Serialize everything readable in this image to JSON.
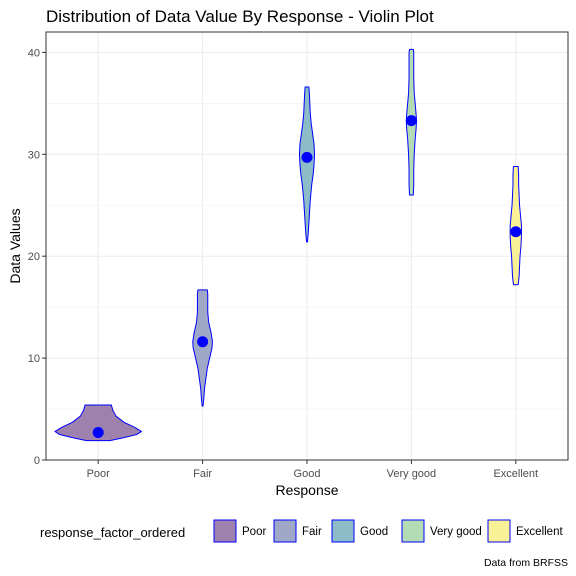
{
  "chart_data": {
    "type": "violin",
    "title": "Distribution of Data Value By Response - Violin Plot",
    "xlabel": "Response",
    "ylabel": "Data Values",
    "ylim": [
      0,
      42
    ],
    "yticks": [
      0,
      10,
      20,
      30,
      40
    ],
    "categories": [
      "Poor",
      "Fair",
      "Good",
      "Very good",
      "Excellent"
    ],
    "colors": {
      "Poor": "#9e82ad",
      "Fair": "#a0a8c8",
      "Good": "#8cbcc8",
      "Very good": "#b4dcb4",
      "Excellent": "#faf096"
    },
    "outline_color": "#0000ff",
    "point_color": "#0000ff",
    "grid": true,
    "legend": {
      "title": "response_factor_ordered",
      "position": "bottom"
    },
    "caption": "Data from BRFSS",
    "series": [
      {
        "category": "Poor",
        "mean": 2.7,
        "min": 1.9,
        "max": 5.4,
        "profile": [
          [
            1.9,
            0.25
          ],
          [
            2.2,
            0.55
          ],
          [
            2.5,
            0.82
          ],
          [
            2.8,
            0.92
          ],
          [
            3.2,
            0.78
          ],
          [
            3.7,
            0.55
          ],
          [
            4.3,
            0.38
          ],
          [
            4.9,
            0.31
          ],
          [
            5.4,
            0.28
          ]
        ]
      },
      {
        "category": "Fair",
        "mean": 11.6,
        "min": 5.3,
        "max": 16.7,
        "profile": [
          [
            5.3,
            0.01
          ],
          [
            6.0,
            0.025
          ],
          [
            7.0,
            0.04
          ],
          [
            8.0,
            0.07
          ],
          [
            9.0,
            0.1
          ],
          [
            10.0,
            0.15
          ],
          [
            11.0,
            0.2
          ],
          [
            11.6,
            0.21
          ],
          [
            12.5,
            0.18
          ],
          [
            13.5,
            0.13
          ],
          [
            14.5,
            0.11
          ],
          [
            15.5,
            0.11
          ],
          [
            16.3,
            0.11
          ],
          [
            16.7,
            0.1
          ]
        ]
      },
      {
        "category": "Good",
        "mean": 29.7,
        "min": 21.4,
        "max": 36.6,
        "profile": [
          [
            21.4,
            0.01
          ],
          [
            22.5,
            0.03
          ],
          [
            24.0,
            0.05
          ],
          [
            25.5,
            0.07
          ],
          [
            27.0,
            0.1
          ],
          [
            28.0,
            0.13
          ],
          [
            29.0,
            0.15
          ],
          [
            30.0,
            0.16
          ],
          [
            31.0,
            0.15
          ],
          [
            32.0,
            0.12
          ],
          [
            33.0,
            0.09
          ],
          [
            34.0,
            0.07
          ],
          [
            35.0,
            0.06
          ],
          [
            36.0,
            0.05
          ],
          [
            36.6,
            0.04
          ]
        ]
      },
      {
        "category": "Very good",
        "mean": 33.3,
        "min": 26.0,
        "max": 40.3,
        "profile": [
          [
            26.0,
            0.04
          ],
          [
            27.0,
            0.05
          ],
          [
            28.5,
            0.05
          ],
          [
            30.0,
            0.06
          ],
          [
            31.5,
            0.08
          ],
          [
            32.5,
            0.1
          ],
          [
            33.3,
            0.11
          ],
          [
            34.5,
            0.09
          ],
          [
            36.0,
            0.06
          ],
          [
            37.5,
            0.05
          ],
          [
            39.0,
            0.05
          ],
          [
            40.0,
            0.05
          ],
          [
            40.3,
            0.04
          ]
        ]
      },
      {
        "category": "Excellent",
        "mean": 22.4,
        "min": 17.2,
        "max": 28.8,
        "profile": [
          [
            17.2,
            0.05
          ],
          [
            18.0,
            0.07
          ],
          [
            19.0,
            0.08
          ],
          [
            20.0,
            0.09
          ],
          [
            21.0,
            0.11
          ],
          [
            22.0,
            0.12
          ],
          [
            23.0,
            0.12
          ],
          [
            24.0,
            0.1
          ],
          [
            25.0,
            0.08
          ],
          [
            26.0,
            0.07
          ],
          [
            27.0,
            0.06
          ],
          [
            28.0,
            0.06
          ],
          [
            28.8,
            0.05
          ]
        ]
      }
    ]
  }
}
